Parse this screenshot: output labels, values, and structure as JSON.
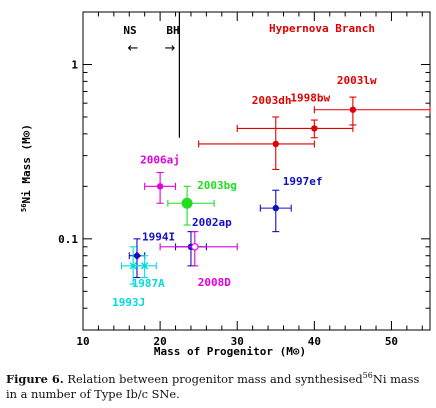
{
  "chart_data": {
    "type": "scatter",
    "xlabel": "Mass of Progenitor (M⊙)",
    "ylabel": "56Ni Mass (M⊙)",
    "ylabel_sup": "56",
    "ylabel_main": "Ni Mass (M⊙)",
    "x_range": [
      10,
      55
    ],
    "y_range": [
      0.03,
      2
    ],
    "y_scale": "log",
    "x_ticks": [
      10,
      20,
      30,
      40,
      50
    ],
    "x_tick_labels": [
      "10",
      "20",
      "30",
      "40",
      "50"
    ],
    "y_ticks": [
      0.1,
      1
    ],
    "y_tick_labels": [
      "0.1",
      "1"
    ],
    "divider_x": 22.5,
    "annotations": {
      "ns": "NS",
      "bh": "BH",
      "hypernova_branch": "Hypernova Branch",
      "ns_arrow": "←",
      "bh_arrow": "→"
    },
    "points": [
      {
        "label": "2003lw",
        "x": 45,
        "y": 0.55,
        "xerr": [
          5,
          10
        ],
        "yerr": [
          0.1,
          0.1
        ],
        "color": "#e00000",
        "marker": "circle",
        "size": 3.2
      },
      {
        "label": "1998bw",
        "x": 40,
        "y": 0.43,
        "xerr": [
          10,
          5
        ],
        "yerr": [
          0.05,
          0.05
        ],
        "color": "#e00000",
        "marker": "circle",
        "size": 3.2
      },
      {
        "label": "2003dh",
        "x": 35,
        "y": 0.35,
        "xerr": [
          10,
          5
        ],
        "yerr": [
          0.1,
          0.15
        ],
        "color": "#e00000",
        "marker": "circle",
        "size": 3.2
      },
      {
        "label": "2006aj",
        "x": 20,
        "y": 0.2,
        "xerr": [
          2,
          2
        ],
        "yerr": [
          0.04,
          0.04
        ],
        "color": "#e000e0",
        "marker": "circle",
        "size": 3.2
      },
      {
        "label": "2003bg",
        "x": 23.5,
        "y": 0.16,
        "xerr": [
          2.5,
          3.5
        ],
        "yerr": [
          0.04,
          0.04
        ],
        "color": "#22dd22",
        "marker": "circle",
        "size": 5.5
      },
      {
        "label": "1997ef",
        "x": 35,
        "y": 0.15,
        "xerr": [
          2,
          2
        ],
        "yerr": [
          0.04,
          0.04
        ],
        "color": "#1010c0",
        "marker": "circle",
        "size": 3.2
      },
      {
        "label": "2002ap",
        "x": 24,
        "y": 0.09,
        "xerr": [
          2,
          2
        ],
        "yerr": [
          0.02,
          0.02
        ],
        "color": "#1010c0",
        "marker": "circle",
        "size": 3.2
      },
      {
        "label": "2008D",
        "x": 24.5,
        "y": 0.09,
        "xerr": [
          4.5,
          5.5
        ],
        "yerr": [
          0.02,
          0.02
        ],
        "color": "#e000e0",
        "marker": "circle-open",
        "size": 3.2
      },
      {
        "label": "1994I",
        "x": 17,
        "y": 0.08,
        "xerr": [
          1,
          1
        ],
        "yerr": [
          0.02,
          0.02
        ],
        "color": "#1010c0",
        "marker": "diamond",
        "size": 3.2
      },
      {
        "label": "1987A",
        "x": 18,
        "y": 0.07,
        "xerr": [
          1.5,
          1.5
        ],
        "yerr": [
          0.01,
          0.01
        ],
        "color": "#00dddd",
        "marker": "cross",
        "size": 3.2
      },
      {
        "label": "1993J",
        "x": 16.5,
        "y": 0.07,
        "xerr": [
          1.5,
          1.5
        ],
        "yerr": [
          0.015,
          0.02
        ],
        "color": "#00dddd",
        "marker": "cross",
        "size": 3.2
      }
    ]
  },
  "caption": {
    "label": "Figure 6.",
    "text_before_sup": "Relation between progenitor mass and synthesised",
    "sup": "56",
    "text_after_sup": "Ni mass in a number of Type Ib/c SNe."
  }
}
